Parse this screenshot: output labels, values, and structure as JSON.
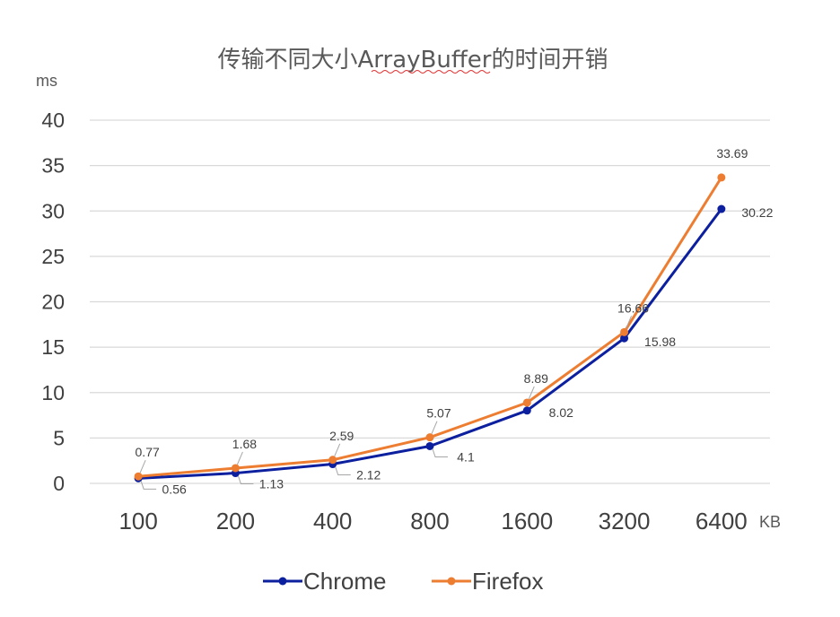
{
  "chart_data": {
    "type": "line",
    "title": "传输不同大小ArrayBuffer的时间开销",
    "ylabel": "ms",
    "xlabel": "KB",
    "categories": [
      "100",
      "200",
      "400",
      "800",
      "1600",
      "3200",
      "6400"
    ],
    "ylim": [
      0,
      40
    ],
    "yticks": [
      0,
      5,
      10,
      15,
      20,
      25,
      30,
      35,
      40
    ],
    "grid": true,
    "legend_position": "bottom",
    "series": [
      {
        "name": "Chrome",
        "color": "#0c1f9e",
        "values": [
          0.56,
          1.13,
          2.12,
          4.1,
          8.02,
          15.98,
          30.22
        ],
        "labels": [
          "0.56",
          "1.13",
          "2.12",
          "4.1",
          "8.02",
          "15.98",
          "30.22"
        ]
      },
      {
        "name": "Firefox",
        "color": "#ed7d31",
        "values": [
          0.77,
          1.68,
          2.59,
          5.07,
          8.89,
          16.66,
          33.69
        ],
        "labels": [
          "0.77",
          "1.68",
          "2.59",
          "5.07",
          "8.89",
          "16.66",
          "33.69"
        ]
      }
    ]
  }
}
